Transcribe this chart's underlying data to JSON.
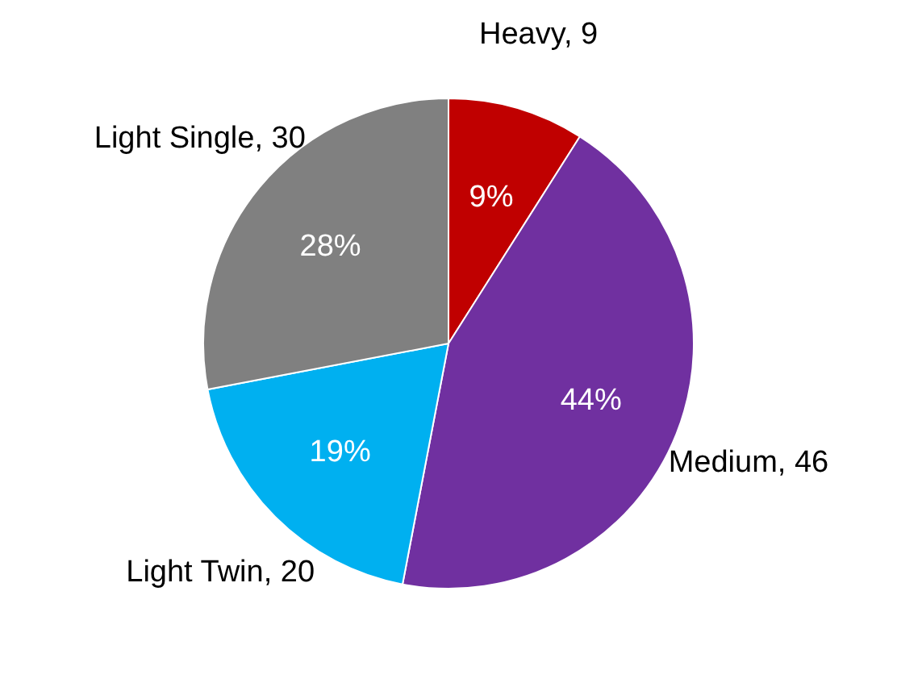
{
  "chart_data": {
    "type": "pie",
    "categories": [
      "Heavy, 9",
      "Medium, 46",
      "Light Twin, 20",
      "Light Single, 30"
    ],
    "values": [
      9,
      44,
      19,
      28
    ],
    "colors": [
      "#c00000",
      "#7030a0",
      "#00b0f0",
      "#808080"
    ],
    "value_labels": [
      "9%",
      "44%",
      "19%",
      "28%"
    ]
  }
}
